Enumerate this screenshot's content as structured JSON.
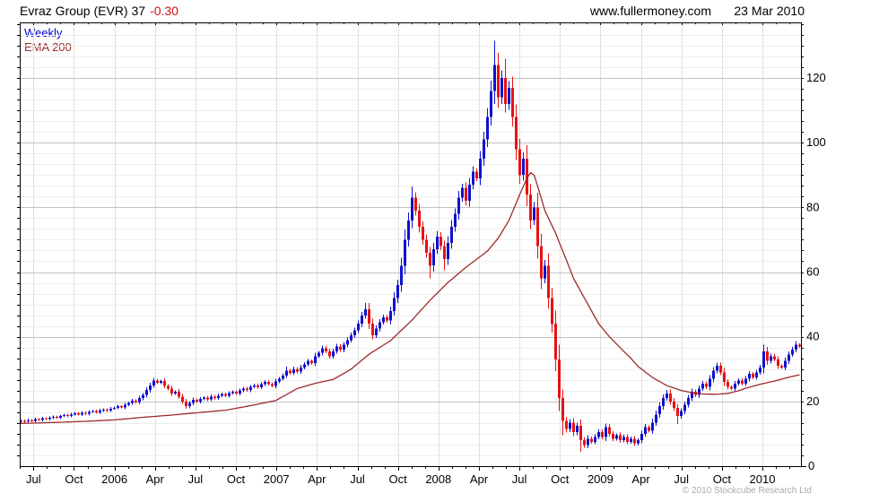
{
  "header": {
    "title": "Evraz Group (EVR) 37",
    "change": "-0.30",
    "source": "www.fullermoney.com",
    "date": "23 Mar 2010"
  },
  "legend": {
    "weekly": "Weekly",
    "ema": "EMA 200"
  },
  "footer": {
    "copyright": "© 2010 Stockcube Research Ltd"
  },
  "colors": {
    "up": "#1010d0",
    "down": "#e81111",
    "ema": "#9e2a2a",
    "title_change": "#cc1111",
    "legend_weekly": "#0000cc",
    "grid_minor": "#ededed",
    "grid_major": "#c2c2c2",
    "grid_vertical": "#e0e0e0",
    "axis": "#000000",
    "label": "#000000",
    "copyright": "#aaaaaa",
    "background": "#ffffff"
  },
  "chart_data": {
    "type": "candlestick",
    "legend_position": "top-left",
    "grid": "on",
    "y_axis": {
      "side": "right",
      "min": 0,
      "max": 137,
      "tick_labels": [
        0,
        20,
        40,
        60,
        80,
        100,
        120
      ],
      "major_step": 20,
      "minor_step": 3.3333
    },
    "x_axis": {
      "quarter_labels": [
        "Jul",
        "Oct",
        "2006",
        "Apr",
        "Jul",
        "Oct",
        "2007",
        "Apr",
        "Jul",
        "Oct",
        "2008",
        "Apr",
        "Jul",
        "Oct",
        "2009",
        "Apr",
        "Jul",
        "Oct",
        "2010"
      ],
      "start": "Jun 2005",
      "end": "Mar 2010",
      "interval": "weekly"
    },
    "series": {
      "name": "Weekly",
      "first_open": 13.8,
      "closes": [
        14.0,
        13.8,
        14.2,
        14.0,
        14.5,
        14.3,
        14.8,
        14.6,
        15.0,
        15.3,
        15.0,
        15.5,
        15.8,
        15.5,
        16.0,
        16.3,
        16.0,
        16.5,
        16.2,
        16.8,
        17.0,
        16.6,
        17.2,
        17.5,
        17.2,
        17.8,
        18.0,
        18.5,
        18.2,
        19.0,
        19.5,
        20.2,
        19.8,
        21.0,
        22.0,
        23.5,
        25.0,
        26.5,
        25.8,
        26.3,
        24.8,
        24.0,
        22.5,
        23.0,
        21.5,
        20.0,
        18.5,
        19.5,
        20.5,
        20.0,
        20.8,
        21.2,
        20.6,
        21.5,
        21.0,
        21.8,
        22.3,
        21.8,
        22.6,
        23.0,
        22.5,
        23.4,
        24.0,
        23.5,
        24.5,
        25.0,
        24.4,
        25.3,
        26.0,
        25.4,
        24.8,
        26.2,
        27.0,
        28.0,
        29.5,
        28.8,
        30.0,
        29.2,
        30.5,
        31.5,
        32.5,
        31.8,
        34.0,
        35.0,
        36.5,
        35.5,
        34.0,
        35.5,
        37.0,
        36.0,
        37.5,
        39.0,
        40.5,
        42.0,
        44.0,
        46.5,
        48.5,
        44.0,
        40.5,
        42.5,
        44.5,
        46.0,
        45.0,
        48.0,
        52.0,
        56.0,
        62.0,
        70.0,
        76.0,
        83.0,
        79.0,
        74.0,
        70.0,
        66.0,
        62.0,
        67.0,
        71.0,
        68.0,
        64.0,
        69.0,
        74.0,
        78.0,
        83.0,
        86.0,
        82.0,
        87.0,
        91.0,
        89.0,
        95.0,
        101.0,
        108.0,
        116.0,
        124.0,
        114.0,
        120.0,
        112.0,
        117.0,
        108.0,
        98.0,
        90.0,
        95.0,
        84.0,
        76.0,
        80.0,
        68.0,
        58.0,
        62.0,
        52.0,
        44.0,
        33.0,
        21.0,
        14.0,
        11.5,
        13.5,
        10.5,
        12.5,
        8.0,
        6.5,
        8.5,
        7.5,
        9.0,
        10.5,
        9.0,
        12.0,
        10.0,
        8.5,
        9.5,
        8.0,
        9.0,
        7.5,
        8.5,
        7.0,
        8.0,
        10.0,
        12.0,
        11.0,
        13.5,
        16.0,
        18.5,
        21.0,
        22.5,
        20.0,
        18.0,
        15.5,
        17.0,
        19.0,
        21.0,
        23.0,
        22.0,
        24.0,
        25.5,
        24.5,
        27.0,
        29.5,
        31.0,
        29.0,
        26.0,
        24.5,
        24.0,
        25.5,
        26.5,
        25.5,
        27.0,
        28.5,
        27.5,
        29.0,
        30.5,
        35.5,
        32.5,
        34.0,
        33.0,
        31.0,
        30.5,
        32.5,
        34.5,
        36.0,
        37.5,
        37.0
      ],
      "wick_rule": {
        "upper_base": 0.3,
        "upper_factor": 0.35,
        "lower_base": 0.3,
        "lower_factor": 0.3
      },
      "wick_overrides": {
        "74": [
          30.8,
          null
        ],
        "96": [
          50.5,
          null
        ],
        "109": [
          86.5,
          null
        ],
        "114": [
          null,
          58
        ],
        "118": [
          null,
          60.5
        ],
        "132": [
          131.5,
          112
        ],
        "135": [
          126,
          null
        ],
        "151": [
          null,
          9.5
        ],
        "156": [
          null,
          4.5
        ],
        "163": [
          13.2,
          null
        ],
        "180": [
          23.5,
          null
        ],
        "183": [
          null,
          13
        ],
        "194": [
          32,
          null
        ],
        "207": [
          37.5,
          null
        ],
        "216": [
          38.6,
          null
        ]
      }
    },
    "ema": {
      "name": "EMA 200",
      "anchors": [
        [
          0,
          13.2
        ],
        [
          9,
          13.5
        ],
        [
          19,
          13.9
        ],
        [
          26,
          14.3
        ],
        [
          34,
          15.1
        ],
        [
          42,
          15.8
        ],
        [
          49,
          16.5
        ],
        [
          57,
          17.3
        ],
        [
          64,
          18.7
        ],
        [
          71,
          20.3
        ],
        [
          77,
          24.0
        ],
        [
          82,
          25.6
        ],
        [
          87,
          26.8
        ],
        [
          92,
          30.0
        ],
        [
          97,
          34.6
        ],
        [
          103,
          38.8
        ],
        [
          109,
          45.2
        ],
        [
          114,
          51.3
        ],
        [
          119,
          56.8
        ],
        [
          124,
          61.5
        ],
        [
          130,
          66.5
        ],
        [
          133,
          70.5
        ],
        [
          136,
          76.0
        ],
        [
          139,
          84.0
        ],
        [
          141,
          89.0
        ],
        [
          142,
          90.7
        ],
        [
          143,
          90.0
        ],
        [
          144,
          86.5
        ],
        [
          146,
          79.0
        ],
        [
          149,
          72.0
        ],
        [
          152,
          63.7
        ],
        [
          154,
          58.0
        ],
        [
          157,
          52.0
        ],
        [
          161,
          44.0
        ],
        [
          164,
          40.0
        ],
        [
          167,
          36.6
        ],
        [
          170,
          33.3
        ],
        [
          172,
          30.8
        ],
        [
          176,
          27.4
        ],
        [
          180,
          24.9
        ],
        [
          184,
          23.4
        ],
        [
          187,
          22.7
        ],
        [
          190,
          22.3
        ],
        [
          194,
          22.2
        ],
        [
          197,
          22.5
        ],
        [
          200,
          23.3
        ],
        [
          202,
          24.1
        ],
        [
          206,
          25.3
        ],
        [
          210,
          26.3
        ],
        [
          213,
          27.2
        ],
        [
          216,
          28.0
        ],
        [
          217,
          28.2
        ]
      ]
    }
  }
}
